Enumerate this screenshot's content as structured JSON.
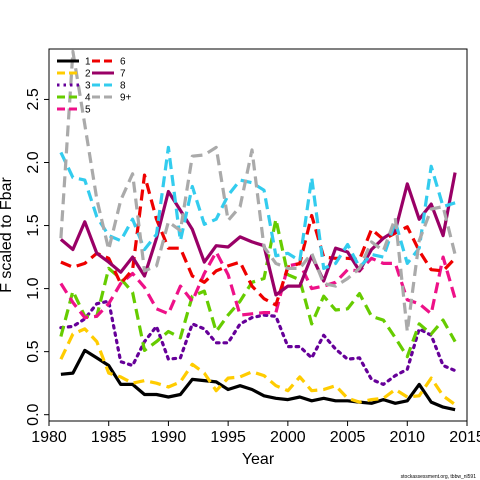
{
  "chart_data": {
    "type": "line",
    "xlabel": "Year",
    "ylabel": "F scaled to Fbar",
    "xlim": [
      1980,
      2015
    ],
    "ylim": [
      -0.05,
      2.9
    ],
    "xticks": [
      1980,
      1985,
      1990,
      1995,
      2000,
      2005,
      2010,
      2015
    ],
    "yticks": [
      0.0,
      0.5,
      1.0,
      1.5,
      2.0,
      2.5
    ],
    "ytick_labels": [
      "0.0",
      "0.5",
      "1.0",
      "1.5",
      "2.0",
      "2.5"
    ],
    "grid": false,
    "legend_position": "top-left",
    "source_note": "stockassessment.org, tbbw_nl591",
    "x": [
      1981,
      1982,
      1983,
      1984,
      1985,
      1986,
      1987,
      1988,
      1989,
      1990,
      1991,
      1992,
      1993,
      1994,
      1995,
      1996,
      1997,
      1998,
      1999,
      2000,
      2001,
      2002,
      2003,
      2004,
      2005,
      2006,
      2007,
      2008,
      2009,
      2010,
      2011,
      2012,
      2013,
      2014
    ],
    "series": [
      {
        "name": "1",
        "color": "#000000",
        "dash": "solid",
        "values": [
          0.32,
          0.33,
          0.51,
          0.45,
          0.39,
          0.24,
          0.24,
          0.16,
          0.16,
          0.14,
          0.16,
          0.28,
          0.27,
          0.26,
          0.2,
          0.23,
          0.2,
          0.15,
          0.13,
          0.12,
          0.14,
          0.11,
          0.13,
          0.11,
          0.11,
          0.1,
          0.09,
          0.12,
          0.09,
          0.11,
          0.24,
          0.1,
          0.06,
          0.04
        ]
      },
      {
        "name": "2",
        "color": "#FFCC00",
        "dash": "dash",
        "values": [
          0.44,
          0.64,
          0.68,
          0.58,
          0.33,
          0.3,
          0.25,
          0.27,
          0.25,
          0.22,
          0.26,
          0.4,
          0.33,
          0.19,
          0.29,
          0.3,
          0.34,
          0.31,
          0.23,
          0.19,
          0.3,
          0.19,
          0.2,
          0.23,
          0.13,
          0.1,
          0.12,
          0.13,
          0.2,
          0.14,
          0.15,
          0.29,
          0.15,
          0.08
        ]
      },
      {
        "name": "3",
        "color": "#660099",
        "dash": "dot",
        "values": [
          0.69,
          0.7,
          0.76,
          0.88,
          0.9,
          0.42,
          0.39,
          0.58,
          0.7,
          0.44,
          0.45,
          0.72,
          0.68,
          0.57,
          0.57,
          0.72,
          0.77,
          0.79,
          0.78,
          0.54,
          0.54,
          0.45,
          0.63,
          0.52,
          0.44,
          0.45,
          0.28,
          0.24,
          0.31,
          0.36,
          0.68,
          0.63,
          0.39,
          0.35
        ]
      },
      {
        "name": "4",
        "color": "#66CC00",
        "dash": "dash",
        "values": [
          0.62,
          0.98,
          0.78,
          0.78,
          1.16,
          1.08,
          0.97,
          0.51,
          0.58,
          0.66,
          0.61,
          0.94,
          0.98,
          0.66,
          0.79,
          0.9,
          1.05,
          1.08,
          1.55,
          1.11,
          1.07,
          0.72,
          0.94,
          0.83,
          0.84,
          0.96,
          0.78,
          0.75,
          0.61,
          0.46,
          0.72,
          0.64,
          0.75,
          0.58
        ]
      },
      {
        "name": "5",
        "color": "#EE1188",
        "dash": "dash",
        "values": [
          1.04,
          0.89,
          0.77,
          0.78,
          0.88,
          1.04,
          1.12,
          1.01,
          0.84,
          0.8,
          1.02,
          0.9,
          1.12,
          1.29,
          1.11,
          0.79,
          0.8,
          0.81,
          0.81,
          1.18,
          1.2,
          1.0,
          1.02,
          1.05,
          1.15,
          1.14,
          1.24,
          1.2,
          1.2,
          0.91,
          0.88,
          0.8,
          1.25,
          0.92
        ]
      },
      {
        "name": "6",
        "color": "#EE0000",
        "dash": "dash",
        "values": [
          1.21,
          1.17,
          1.2,
          1.28,
          1.24,
          1.04,
          1.15,
          1.9,
          1.55,
          1.32,
          1.32,
          1.1,
          1.05,
          1.14,
          1.18,
          1.21,
          1.02,
          0.92,
          0.87,
          1.17,
          1.2,
          1.58,
          1.25,
          1.24,
          1.24,
          1.23,
          1.47,
          1.39,
          1.44,
          1.49,
          1.3,
          1.15,
          1.14,
          1.24
        ]
      },
      {
        "name": "7",
        "color": "#990066",
        "dash": "solid",
        "values": [
          1.39,
          1.31,
          1.53,
          1.28,
          1.21,
          1.13,
          1.25,
          1.1,
          1.4,
          1.77,
          1.62,
          1.47,
          1.21,
          1.34,
          1.33,
          1.41,
          1.37,
          1.34,
          0.95,
          1.02,
          1.02,
          1.26,
          1.06,
          1.32,
          1.29,
          1.14,
          1.31,
          1.4,
          1.46,
          1.83,
          1.55,
          1.67,
          1.42,
          1.92
        ]
      },
      {
        "name": "8",
        "color": "#33CCEE",
        "dash": "dash",
        "values": [
          2.08,
          1.88,
          1.86,
          1.57,
          1.42,
          1.38,
          1.55,
          1.31,
          1.43,
          2.12,
          1.38,
          1.81,
          1.51,
          1.55,
          1.74,
          1.86,
          1.84,
          1.78,
          1.26,
          1.28,
          1.22,
          1.88,
          1.16,
          1.2,
          1.35,
          1.17,
          1.27,
          1.25,
          1.53,
          1.2,
          1.32,
          1.97,
          1.65,
          1.68
        ]
      },
      {
        "name": "9+",
        "color": "#AAAAAA",
        "dash": "dash",
        "values": [
          1.4,
          2.88,
          2.3,
          1.71,
          1.31,
          1.7,
          1.91,
          1.14,
          1.18,
          1.53,
          1.46,
          2.05,
          2.06,
          2.12,
          1.54,
          1.65,
          2.1,
          1.33,
          1.2,
          1.16,
          1.16,
          1.28,
          1.04,
          1.02,
          1.08,
          1.16,
          1.37,
          1.3,
          1.56,
          0.66,
          1.38,
          1.63,
          1.65,
          1.27
        ]
      }
    ]
  }
}
